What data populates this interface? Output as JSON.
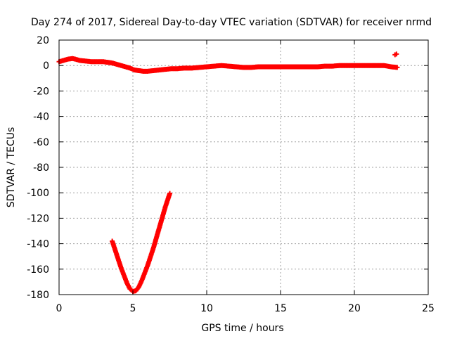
{
  "chart_data": {
    "type": "scatter",
    "title": "Day 274 of 2017, Sidereal Day-to-day VTEC variation (SDTVAR) for receiver nrmd",
    "xlabel": "GPS time / hours",
    "ylabel": "SDTVAR / TECUs",
    "xlim": [
      0,
      25
    ],
    "ylim": [
      -180,
      20
    ],
    "x_ticks": [
      0,
      5,
      10,
      15,
      20,
      25
    ],
    "x_tick_labels": [
      "0",
      "5",
      "10",
      "15",
      "20",
      "25"
    ],
    "y_ticks": [
      20,
      0,
      -20,
      -40,
      -60,
      -80,
      -100,
      -120,
      -140,
      -160,
      -180
    ],
    "y_tick_labels": [
      "20",
      "0",
      "-20",
      "-40",
      "-60",
      "-80",
      "-100",
      "-120",
      "-140",
      "-160",
      "-180"
    ],
    "grid": true,
    "marker_color": "#ff0000",
    "series": [
      {
        "name": "main-trace",
        "points": [
          [
            0.0,
            3
          ],
          [
            0.3,
            4
          ],
          [
            0.6,
            5
          ],
          [
            0.9,
            5.5
          ],
          [
            1.1,
            5
          ],
          [
            1.4,
            4
          ],
          [
            1.8,
            3.5
          ],
          [
            2.2,
            3
          ],
          [
            2.6,
            3
          ],
          [
            3.0,
            3
          ],
          [
            3.3,
            2.5
          ],
          [
            3.6,
            2
          ],
          [
            3.9,
            1
          ],
          [
            4.2,
            0
          ],
          [
            4.5,
            -1
          ],
          [
            4.8,
            -2
          ],
          [
            5.1,
            -3.5
          ],
          [
            5.4,
            -4
          ],
          [
            5.7,
            -4.5
          ],
          [
            6.0,
            -4.5
          ],
          [
            6.4,
            -4
          ],
          [
            6.8,
            -3.5
          ],
          [
            7.2,
            -3
          ],
          [
            7.6,
            -2.5
          ],
          [
            8.0,
            -2.5
          ],
          [
            8.5,
            -2
          ],
          [
            9.0,
            -2
          ],
          [
            9.5,
            -1.5
          ],
          [
            10.0,
            -1
          ],
          [
            10.5,
            -0.5
          ],
          [
            11.0,
            0
          ],
          [
            11.5,
            -0.5
          ],
          [
            12.0,
            -1
          ],
          [
            12.5,
            -1.5
          ],
          [
            13.0,
            -1.5
          ],
          [
            13.5,
            -1
          ],
          [
            14.0,
            -1
          ],
          [
            14.5,
            -1
          ],
          [
            15.0,
            -1
          ],
          [
            15.5,
            -1
          ],
          [
            16.0,
            -1
          ],
          [
            16.5,
            -1
          ],
          [
            17.0,
            -1
          ],
          [
            17.5,
            -1
          ],
          [
            18.0,
            -0.5
          ],
          [
            18.5,
            -0.5
          ],
          [
            19.0,
            0
          ],
          [
            19.5,
            0
          ],
          [
            20.0,
            0
          ],
          [
            20.5,
            0
          ],
          [
            21.0,
            0
          ],
          [
            21.5,
            0
          ],
          [
            22.0,
            0
          ],
          [
            22.5,
            -1
          ],
          [
            22.9,
            -1.5
          ]
        ]
      },
      {
        "name": "outlier-points",
        "points": [
          [
            22.75,
            8.5
          ],
          [
            22.85,
            9
          ]
        ]
      },
      {
        "name": "dip-curve",
        "points": [
          [
            3.6,
            -138
          ],
          [
            3.8,
            -145
          ],
          [
            4.0,
            -152
          ],
          [
            4.2,
            -159
          ],
          [
            4.4,
            -165
          ],
          [
            4.6,
            -171
          ],
          [
            4.8,
            -175.5
          ],
          [
            5.0,
            -177.5
          ],
          [
            5.2,
            -177
          ],
          [
            5.4,
            -174
          ],
          [
            5.6,
            -169
          ],
          [
            5.8,
            -163
          ],
          [
            6.0,
            -157
          ],
          [
            6.2,
            -150
          ],
          [
            6.4,
            -143
          ],
          [
            6.6,
            -135
          ],
          [
            6.8,
            -127
          ],
          [
            7.0,
            -119
          ],
          [
            7.2,
            -111
          ],
          [
            7.4,
            -104
          ],
          [
            7.5,
            -100.5
          ]
        ]
      }
    ]
  }
}
